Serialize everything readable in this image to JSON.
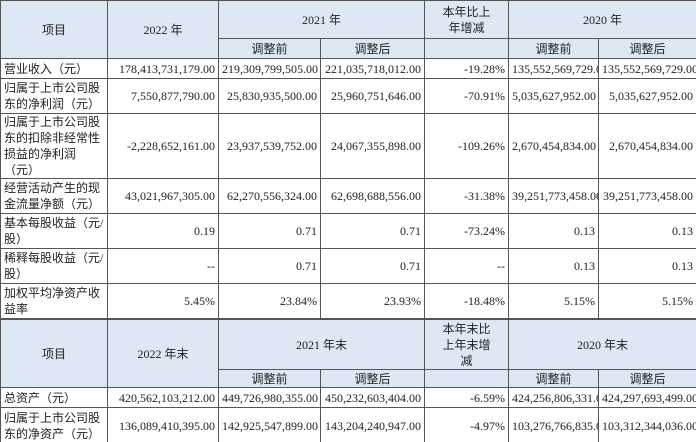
{
  "table1": {
    "header_top": [
      "项目",
      "2022 年",
      "2021 年",
      "本年比上年增减",
      "2020 年"
    ],
    "header_sub": [
      "调整前",
      "调整后",
      "调整前",
      "调整后"
    ],
    "rows": [
      [
        "营业收入（元）",
        "178,413,731,179.00",
        "219,309,799,505.00",
        "221,035,718,012.00",
        "-19.28%",
        "135,552,569,729.00",
        "135,552,569,729.00"
      ],
      [
        "归属于上市公司股东的净利润（元）",
        "7,550,877,790.00",
        "25,830,935,500.00",
        "25,960,751,646.00",
        "-70.91%",
        "5,035,627,952.00",
        "5,035,627,952.00"
      ],
      [
        "归属于上市公司股东的扣除非经常性损益的净利润（元）",
        "-2,228,652,161.00",
        "23,937,539,752.00",
        "24,067,355,898.00",
        "-109.26%",
        "2,670,454,834.00",
        "2,670,454,834.00"
      ],
      [
        "经营活动产生的现金流量净额（元）",
        "43,021,967,305.00",
        "62,270,556,324.00",
        "62,698,688,556.00",
        "-31.38%",
        "39,251,773,458.00",
        "39,251,773,458.00"
      ],
      [
        "基本每股收益（元/股）",
        "0.19",
        "0.71",
        "0.71",
        "-73.24%",
        "0.13",
        "0.13"
      ],
      [
        "稀释每股收益（元/股）",
        "--",
        "0.71",
        "0.71",
        "--",
        "0.13",
        "0.13"
      ],
      [
        "加权平均净资产收益率",
        "5.45%",
        "23.84%",
        "23.93%",
        "-18.48%",
        "5.15%",
        "5.15%"
      ]
    ]
  },
  "table2": {
    "header_top": [
      "项目",
      "2022 年末",
      "2021 年末",
      "本年末比上年末增减",
      "2020 年末"
    ],
    "header_sub": [
      "调整前",
      "调整后",
      "调整前",
      "调整后"
    ],
    "rows": [
      [
        "总资产（元）",
        "420,562,103,212.00",
        "449,726,980,355.00",
        "450,232,603,404.00",
        "-6.59%",
        "424,256,806,331.00",
        "424,297,693,499.00"
      ],
      [
        "归属于上市公司股东的净资产（元）",
        "136,089,410,395.00",
        "142,925,547,899.00",
        "143,204,240,947.00",
        "-4.97%",
        "103,276,766,835.00",
        "103,312,344,036.00"
      ]
    ]
  }
}
